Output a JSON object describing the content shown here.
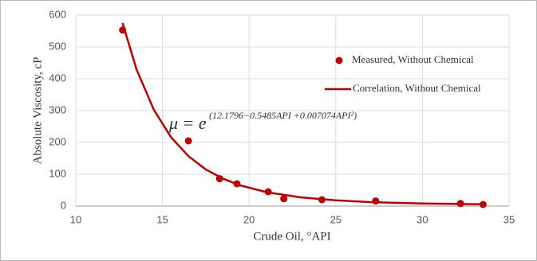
{
  "chart_data": {
    "type": "scatter",
    "x_label": "Crude Oil, °API",
    "y_label": "Absolute Viscosity, cP",
    "annotation_base": "μ = e",
    "annotation_exponent": "(12.1796−0.5485API +0.007074API²)",
    "xlim": [
      10,
      35
    ],
    "xticks": [
      10,
      15,
      20,
      25,
      30,
      35
    ],
    "ylim": [
      0,
      600
    ],
    "yticks": [
      0,
      100,
      200,
      300,
      400,
      500,
      600
    ],
    "grid": true,
    "legend": "right",
    "series": [
      {
        "name": "Measured, Without Chemical",
        "type": "scatter",
        "color": "#c00000",
        "x": [
          12.7,
          16.5,
          18.3,
          19.3,
          21.1,
          22,
          24.2,
          27.3,
          32.2,
          33.5
        ],
        "values": [
          553,
          205,
          86,
          70,
          45,
          23,
          20,
          16,
          8,
          5
        ]
      },
      {
        "name": "Correlation, Without Chemical",
        "type": "line",
        "color": "#c00000",
        "x": [
          12.7,
          13.5,
          14.5,
          15.5,
          16.5,
          17.5,
          18.5,
          19.5,
          21,
          23,
          25,
          27,
          30,
          33.5
        ],
        "values": [
          575,
          430,
          303,
          216,
          157,
          115,
          86,
          65,
          43.8,
          27.3,
          18,
          12.5,
          8.1,
          5.7
        ]
      }
    ]
  }
}
